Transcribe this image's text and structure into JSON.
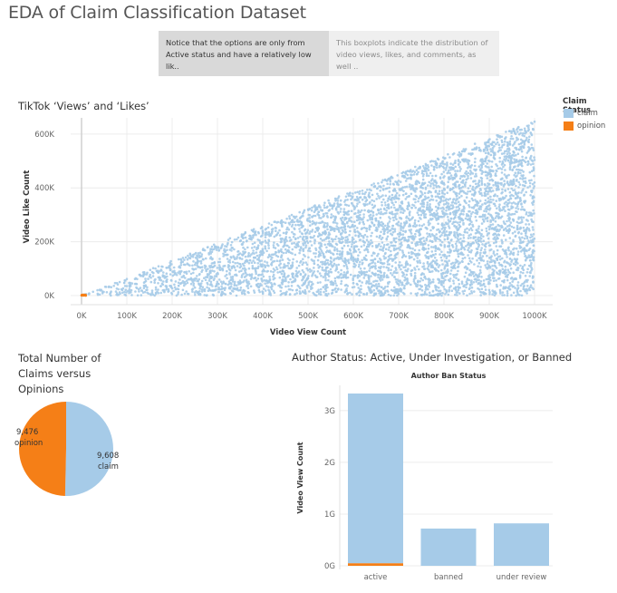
{
  "dashboard": {
    "title": "EDA of Claim Classification Dataset",
    "story_points": [
      {
        "text": "Notice that the options are only from Active status and have a relatively low lik.."
      },
      {
        "text": "This boxplots indicate the distribution of video views, likes, and comments, as well .."
      }
    ]
  },
  "legend": {
    "title": "Claim Status",
    "items": [
      {
        "label": "claim",
        "color": "#a6cbe8"
      },
      {
        "label": "opinion",
        "color": "#f57f17"
      }
    ]
  },
  "colors": {
    "claim": "#a6cbe8",
    "opinion": "#f57f17",
    "grid": "#ececec",
    "zero_line": "#d0d0d0"
  },
  "chart_data": [
    {
      "type": "scatter",
      "title": "TikTok ‘Views’ and ‘Likes’",
      "xlabel": "Video View Count",
      "ylabel": "Video Like Count",
      "xlim": [
        0,
        1000000
      ],
      "ylim": [
        0,
        660000
      ],
      "x_ticks": [
        0,
        100000,
        200000,
        300000,
        400000,
        500000,
        600000,
        700000,
        800000,
        900000,
        1000000
      ],
      "x_tick_labels": [
        "0K",
        "100K",
        "200K",
        "300K",
        "400K",
        "500K",
        "600K",
        "700K",
        "800K",
        "900K",
        "1000K"
      ],
      "y_ticks": [
        0,
        200000,
        400000,
        600000
      ],
      "y_tick_labels": [
        "0K",
        "200K",
        "400K",
        "600K"
      ],
      "grid": true,
      "series": [
        {
          "name": "claim",
          "color": "#a6cbe8",
          "description_points": "likes between 0 and ~0.65 x views, views 0-1000K"
        },
        {
          "name": "opinion",
          "color": "#f57f17",
          "description_points": "clustered near origin (views < ~10K)"
        }
      ],
      "envelope": {
        "like_to_view_max_ratio": 0.65
      }
    },
    {
      "type": "pie",
      "title": "Total Number of Claims versus Opinions",
      "slices": [
        {
          "name": "opinion",
          "value": 9476,
          "label_value": "9,476",
          "color": "#f57f17"
        },
        {
          "name": "claim",
          "value": 9608,
          "label_value": "9,608",
          "color": "#a6cbe8"
        }
      ]
    },
    {
      "type": "bar",
      "title": "Author Status: Active, Under Investigation, or Banned",
      "subtitle": "Author Ban Status",
      "xlabel": "",
      "ylabel": "Video View Count",
      "ylim": [
        0,
        3400000000
      ],
      "y_ticks": [
        0,
        1000000000,
        2000000000,
        3000000000
      ],
      "y_tick_labels": [
        "0G",
        "1G",
        "2G",
        "3G"
      ],
      "categories": [
        "active",
        "banned",
        "under review"
      ],
      "series": [
        {
          "name": "opinion",
          "color": "#f57f17",
          "values": [
            50000000,
            0,
            0
          ]
        },
        {
          "name": "claim",
          "color": "#a6cbe8",
          "values": [
            3280000000,
            720000000,
            820000000
          ]
        }
      ]
    }
  ]
}
